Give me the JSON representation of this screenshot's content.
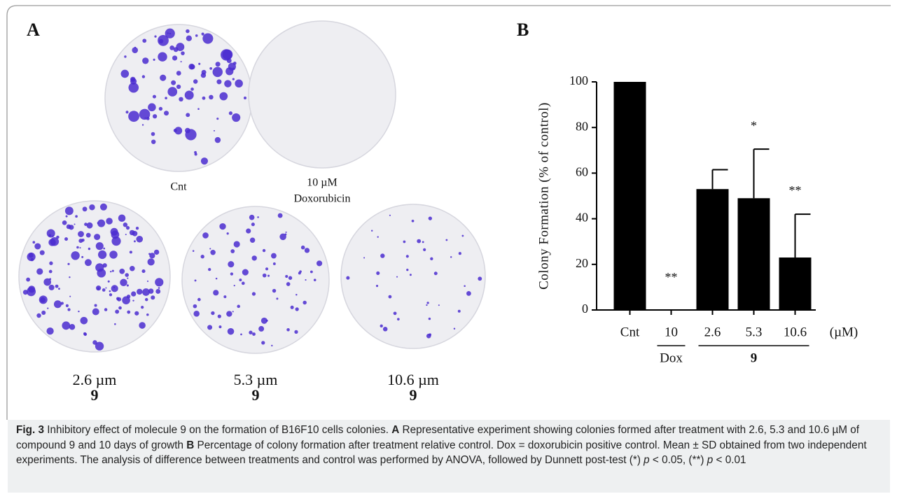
{
  "panel_a": {
    "label": "A",
    "dishes": [
      {
        "lines": [
          "Cnt"
        ]
      },
      {
        "lines": [
          "10 µM",
          "Doxorubicin"
        ]
      },
      {
        "lines": [
          "2.6 µm",
          "9"
        ]
      },
      {
        "lines": [
          "5.3 µm",
          "9"
        ]
      },
      {
        "lines": [
          "10.6 µm",
          "9"
        ]
      }
    ]
  },
  "chart_data": {
    "type": "bar",
    "panel_label": "B",
    "y_label": "Colony Formation (% of control)",
    "categories": [
      "Cnt",
      "10",
      "2.6",
      "5.3",
      "10.6"
    ],
    "values": [
      100,
      0,
      53,
      49,
      23
    ],
    "errors": [
      null,
      null,
      8.5,
      21.5,
      19
    ],
    "annotations": [
      null,
      "**",
      null,
      "*",
      "**"
    ],
    "unit_label": "(µM)",
    "groups": [
      {
        "label": "Dox",
        "span": [
          1,
          1
        ]
      },
      {
        "label": "9",
        "span": [
          2,
          4
        ]
      }
    ],
    "color": "#000000",
    "ylim": [
      0,
      100
    ],
    "yticks": [
      0,
      20,
      40,
      60,
      80,
      100
    ]
  },
  "caption": {
    "parts": [
      "Fig. 3",
      " Inhibitory effect of molecule 9 on the formation of B16F10 cells colonies. ",
      "A",
      " Representative experiment showing colonies formed after treatment with 2.6, 5.3 and 10.6 µM of compound 9 and 10 days of growth ",
      "B",
      " Percentage of colony formation after treatment relative control. Dox = doxorubicin positive control. Mean ± SD obtained from two independent experiments. The analysis of difference between treatments and control was performed by ANOVA, followed by Dunnett post-test (*) ",
      "p",
      " < 0.05, (**) ",
      "p",
      " < 0.01"
    ]
  }
}
